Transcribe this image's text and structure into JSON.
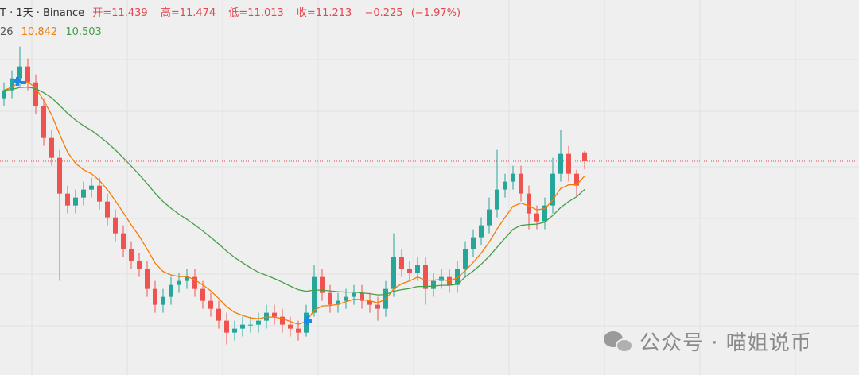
{
  "header": {
    "symbol_line": "T · 1天 · Binance",
    "labels": {
      "open": "开=",
      "high": "高=",
      "low": "低=",
      "close": "收="
    },
    "change": {
      "value": -0.225,
      "label": "−0.225"
    },
    "change_pct": {
      "value": -1.97,
      "label": "(−1.97%)"
    },
    "indicator_label": "26"
  },
  "chart_data": {
    "type": "candlestick",
    "ylim": [
      5.833,
      15.273
    ],
    "up_color": "#26a69a",
    "down_color": "#ef5350",
    "last_price_line": true,
    "open": [
      12.8,
      13.0,
      13.3,
      13.6,
      13.2,
      12.6,
      11.8,
      11.3,
      10.4,
      10.1,
      10.3,
      10.5,
      10.6,
      10.2,
      9.8,
      9.4,
      9.0,
      8.7,
      8.5,
      8.0,
      7.6,
      7.8,
      8.1,
      8.2,
      8.3,
      8.0,
      7.7,
      7.5,
      7.2,
      6.9,
      7.0,
      7.1,
      7.1,
      7.2,
      7.4,
      7.3,
      7.1,
      7.0,
      6.9,
      7.4,
      8.3,
      7.9,
      7.6,
      7.7,
      7.8,
      7.9,
      7.7,
      7.6,
      7.5,
      8.0,
      8.8,
      8.5,
      8.4,
      8.6,
      8.0,
      8.2,
      8.3,
      8.1,
      8.5,
      9.0,
      9.3,
      9.6,
      10.0,
      10.5,
      10.7,
      10.9,
      10.4,
      9.9,
      9.7,
      10.1,
      10.9,
      11.4,
      10.9,
      11.439
    ],
    "high": [
      13.2,
      13.5,
      14.1,
      13.8,
      13.4,
      12.8,
      12.0,
      11.5,
      10.6,
      10.5,
      10.7,
      10.8,
      10.8,
      10.4,
      10.0,
      9.6,
      9.2,
      8.9,
      8.7,
      8.2,
      8.0,
      8.3,
      8.4,
      8.5,
      8.5,
      8.2,
      7.9,
      7.7,
      7.4,
      7.2,
      7.3,
      7.3,
      7.4,
      7.6,
      7.6,
      7.5,
      7.3,
      7.2,
      7.6,
      8.6,
      8.5,
      8.1,
      7.9,
      8.0,
      8.1,
      8.1,
      7.9,
      7.8,
      8.2,
      9.4,
      9.0,
      8.7,
      8.8,
      8.8,
      8.4,
      8.5,
      8.5,
      8.7,
      9.2,
      9.5,
      9.8,
      10.3,
      11.5,
      10.9,
      11.1,
      11.1,
      10.6,
      10.1,
      10.3,
      11.3,
      12.0,
      11.6,
      11.0,
      11.474
    ],
    "low": [
      12.6,
      12.8,
      13.1,
      13.0,
      12.4,
      11.6,
      11.1,
      8.2,
      9.9,
      9.9,
      10.1,
      10.3,
      10.0,
      9.6,
      9.2,
      8.8,
      8.5,
      8.3,
      7.8,
      7.4,
      7.4,
      7.6,
      7.9,
      8.0,
      7.8,
      7.5,
      7.3,
      7.0,
      6.6,
      6.7,
      6.8,
      6.9,
      6.9,
      7.0,
      7.1,
      6.9,
      6.8,
      6.7,
      6.8,
      7.3,
      7.7,
      7.4,
      7.4,
      7.5,
      7.6,
      7.5,
      7.4,
      7.2,
      7.3,
      7.8,
      8.3,
      8.2,
      8.2,
      7.6,
      7.8,
      8.0,
      7.9,
      7.9,
      8.3,
      8.8,
      9.1,
      9.4,
      9.8,
      10.3,
      10.5,
      10.2,
      9.5,
      9.5,
      9.5,
      9.9,
      10.7,
      10.7,
      10.3,
      11.013
    ],
    "close": [
      13.0,
      13.3,
      13.6,
      13.2,
      12.6,
      11.8,
      11.3,
      10.4,
      10.1,
      10.3,
      10.5,
      10.6,
      10.2,
      9.8,
      9.4,
      9.0,
      8.7,
      8.5,
      8.0,
      7.6,
      7.8,
      8.1,
      8.2,
      8.3,
      8.0,
      7.7,
      7.5,
      7.2,
      6.9,
      7.0,
      7.1,
      7.1,
      7.2,
      7.4,
      7.3,
      7.1,
      7.0,
      6.9,
      7.4,
      8.3,
      7.9,
      7.6,
      7.7,
      7.8,
      7.9,
      7.7,
      7.6,
      7.5,
      8.0,
      8.8,
      8.5,
      8.4,
      8.6,
      8.0,
      8.2,
      8.3,
      8.1,
      8.5,
      9.0,
      9.3,
      9.6,
      10.0,
      10.5,
      10.7,
      10.9,
      10.4,
      9.9,
      9.7,
      10.1,
      10.9,
      11.4,
      10.9,
      10.6,
      11.213
    ],
    "series": [
      {
        "color": "#f57c00",
        "values": [
          13.0,
          13.08,
          13.21,
          13.21,
          13.06,
          12.74,
          12.38,
          11.89,
          11.44,
          11.16,
          11.0,
          10.9,
          10.73,
          10.5,
          10.22,
          9.92,
          9.61,
          9.33,
          9.0,
          8.65,
          8.44,
          8.35,
          8.31,
          8.31,
          8.23,
          8.1,
          7.95,
          7.76,
          7.55,
          7.41,
          7.33,
          7.27,
          7.25,
          7.29,
          7.29,
          7.25,
          7.18,
          7.11,
          7.18,
          7.46,
          7.57,
          7.58,
          7.61,
          7.68,
          7.74,
          7.73,
          7.7,
          7.65,
          7.74,
          8.0,
          8.13,
          8.2,
          8.3,
          8.22,
          8.22,
          8.24,
          8.2,
          8.28,
          8.46,
          8.67,
          8.9,
          9.18,
          9.51,
          9.8,
          10.08,
          10.16,
          10.09,
          9.99,
          10.02,
          10.24,
          10.53,
          10.62,
          10.62,
          10.842
        ]
      },
      {
        "color": "#43a047",
        "values": [
          13.0,
          13.02,
          13.07,
          13.08,
          13.04,
          12.94,
          12.81,
          12.62,
          12.42,
          12.25,
          12.11,
          11.99,
          11.84,
          11.68,
          11.5,
          11.3,
          11.09,
          10.88,
          10.65,
          10.41,
          10.2,
          10.03,
          9.88,
          9.75,
          9.61,
          9.46,
          9.3,
          9.13,
          8.95,
          8.79,
          8.66,
          8.53,
          8.42,
          8.34,
          8.26,
          8.17,
          8.07,
          7.98,
          7.94,
          7.97,
          7.97,
          7.95,
          7.93,
          7.92,
          7.92,
          7.9,
          7.88,
          7.85,
          7.86,
          7.94,
          7.98,
          8.01,
          8.06,
          8.06,
          8.07,
          8.09,
          8.09,
          8.12,
          8.3,
          8.45,
          8.62,
          8.82,
          9.05,
          9.28,
          9.5,
          9.6,
          9.62,
          9.63,
          9.68,
          9.85,
          10.05,
          10.2,
          10.32,
          10.503
        ]
      }
    ]
  },
  "watermark": "公众号 · 喵姐说币"
}
